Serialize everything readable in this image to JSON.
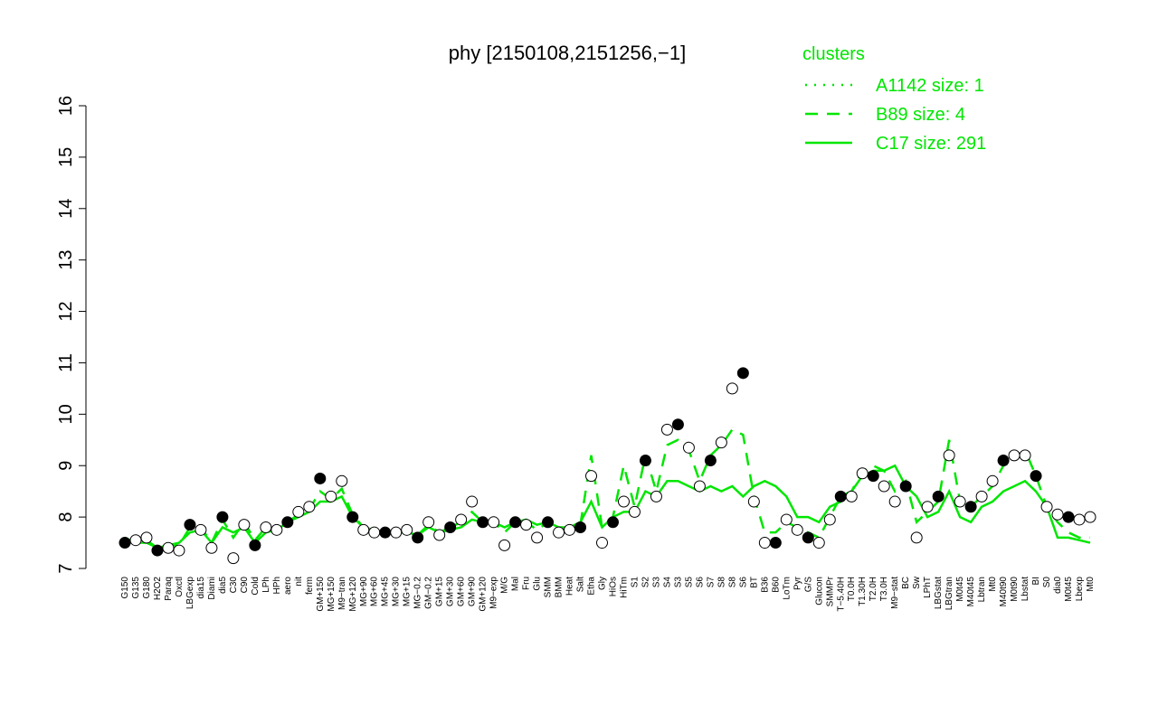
{
  "chart_data": {
    "type": "line",
    "title": "phy [2150108,2151256,−1]",
    "legend_title": "clusters",
    "legend_position": "top-right",
    "categories": [
      "G150",
      "G135",
      "G180",
      "H2O2",
      "Paraq",
      "Oxctl",
      "LBGexp",
      "dia15",
      "Diami",
      "dia5",
      "C30",
      "C90",
      "Cold",
      "LPh",
      "HPh",
      "aero",
      "nit",
      "ferm",
      "GM+150",
      "MG+150",
      "M9−tran",
      "MG+120",
      "MG+90",
      "MG+60",
      "MG+45",
      "MG+30",
      "MG+15",
      "MG−0.2",
      "GM−0.2",
      "GM+15",
      "GM+30",
      "GM+60",
      "GM+90",
      "GM+120",
      "M9−exp",
      "M/G",
      "Mal",
      "Fru",
      "Glu",
      "SMM",
      "BMM",
      "Heat",
      "Salt",
      "Etha",
      "Gly",
      "HiOs",
      "HiTm",
      "S1",
      "S2",
      "S3",
      "S4",
      "S3",
      "S5",
      "S6",
      "S7",
      "S8",
      "S8",
      "S6",
      "BT",
      "B36",
      "B60",
      "LoTm",
      "Pyr",
      "G/S",
      "Glucon",
      "SMMPr",
      "T−5.40H",
      "T0.0H",
      "T1.30H",
      "T2.0H",
      "T3.0H",
      "M9−stat",
      "BC",
      "Sw",
      "LPhT",
      "LBGstat",
      "LBGtran",
      "M0t45",
      "M40t45",
      "Lbtran",
      "Mt0",
      "M40t90",
      "M0t90",
      "Lbstat",
      "BI",
      "S0",
      "dia0",
      "M0t45",
      "Lbexp",
      "Mt0"
    ],
    "values": [
      7.5,
      7.55,
      7.6,
      7.35,
      7.4,
      7.35,
      7.85,
      7.75,
      7.4,
      8.0,
      7.2,
      7.85,
      7.45,
      7.8,
      7.75,
      7.9,
      8.1,
      8.2,
      8.75,
      8.4,
      8.7,
      8.0,
      7.75,
      7.7,
      7.7,
      7.7,
      7.75,
      7.6,
      7.9,
      7.65,
      7.8,
      7.95,
      8.3,
      7.9,
      7.9,
      7.45,
      7.9,
      7.85,
      7.6,
      7.9,
      7.7,
      7.75,
      7.8,
      8.8,
      7.5,
      7.9,
      8.3,
      8.1,
      9.1,
      8.4,
      9.7,
      9.8,
      9.35,
      8.6,
      9.1,
      9.45,
      10.5,
      10.8,
      8.3,
      7.5,
      7.5,
      7.95,
      7.75,
      7.6,
      7.5,
      7.95,
      8.4,
      8.4,
      8.85,
      8.8,
      8.6,
      8.3,
      8.6,
      7.6,
      8.2,
      8.4,
      9.2,
      8.3,
      8.2,
      8.4,
      8.7,
      9.1,
      9.2,
      9.2,
      8.8,
      8.2,
      8.05,
      8.0,
      7.95,
      8.0
    ],
    "series": [
      {
        "name": "A1142 size: 1",
        "color": "#00e600",
        "dash": "dotted"
      },
      {
        "name": "B89 size: 4",
        "color": "#00e600",
        "dash": "dashed",
        "values": [
          7.55,
          7.5,
          7.55,
          7.4,
          7.45,
          7.45,
          7.8,
          7.8,
          7.5,
          7.95,
          7.6,
          7.9,
          7.55,
          7.8,
          7.75,
          7.9,
          8.05,
          8.15,
          8.5,
          8.35,
          8.55,
          8.05,
          7.8,
          7.75,
          7.7,
          7.7,
          7.75,
          7.65,
          7.85,
          7.7,
          7.8,
          7.9,
          8.1,
          7.9,
          7.9,
          7.7,
          7.9,
          7.9,
          7.75,
          7.9,
          7.75,
          7.8,
          7.85,
          9.2,
          7.8,
          8.0,
          9.0,
          8.2,
          9.2,
          8.5,
          9.4,
          9.5,
          9.3,
          8.7,
          9.2,
          9.4,
          9.7,
          9.6,
          8.4,
          7.7,
          7.7,
          7.9,
          7.8,
          7.7,
          7.6,
          8.0,
          8.4,
          8.5,
          8.9,
          9.0,
          8.9,
          8.5,
          8.7,
          7.9,
          8.1,
          8.3,
          9.5,
          8.3,
          8.2,
          8.4,
          8.6,
          9.0,
          9.1,
          9.3,
          8.8,
          8.2,
          7.9,
          7.7,
          7.6,
          7.6
        ]
      },
      {
        "name": "C17 size: 291",
        "color": "#00e600",
        "dash": "solid",
        "values": [
          7.6,
          7.5,
          7.5,
          7.4,
          7.45,
          7.5,
          7.7,
          7.75,
          7.5,
          7.8,
          7.7,
          7.8,
          7.5,
          7.7,
          7.75,
          7.9,
          8.0,
          8.1,
          8.3,
          8.3,
          8.4,
          8.0,
          7.8,
          7.75,
          7.7,
          7.7,
          7.7,
          7.65,
          7.8,
          7.7,
          7.75,
          7.8,
          7.95,
          7.9,
          7.9,
          7.8,
          7.9,
          7.95,
          7.85,
          7.9,
          7.8,
          7.8,
          7.9,
          8.3,
          7.8,
          8.0,
          8.1,
          8.1,
          8.5,
          8.4,
          8.7,
          8.7,
          8.6,
          8.5,
          8.6,
          8.5,
          8.6,
          8.4,
          8.6,
          8.7,
          8.6,
          8.4,
          8.0,
          8.0,
          7.9,
          8.2,
          8.3,
          8.5,
          8.8,
          8.9,
          8.9,
          9.0,
          8.6,
          8.4,
          8.0,
          8.1,
          8.5,
          8.0,
          7.9,
          8.2,
          8.3,
          8.5,
          8.6,
          8.7,
          8.5,
          8.2,
          7.6,
          7.6,
          7.55,
          7.5
        ]
      }
    ],
    "ylim": [
      7,
      16
    ],
    "yticks": [
      7,
      8,
      9,
      10,
      11,
      12,
      13,
      14,
      15,
      16
    ]
  }
}
